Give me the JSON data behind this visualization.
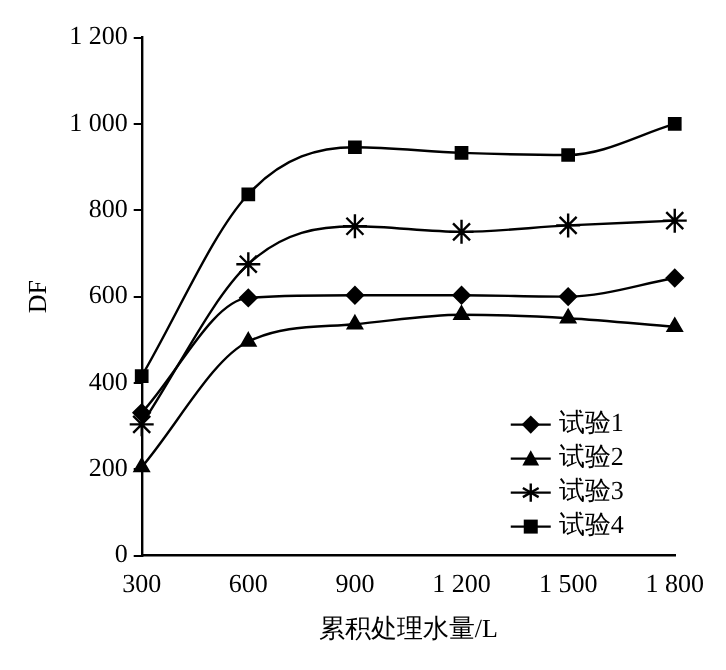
{
  "chart_data": {
    "type": "line",
    "xlabel": "累积处理水量/L",
    "ylabel": "DF",
    "x": [
      300,
      600,
      900,
      1200,
      1500,
      1800
    ],
    "xlim": [
      300,
      1800
    ],
    "xticks": [
      300,
      600,
      900,
      {
        "value": 1200,
        "label": "1 200"
      },
      {
        "value": 1500,
        "label": "1 500"
      },
      {
        "value": 1800,
        "label": "1 800"
      }
    ],
    "ylim": [
      0,
      1200
    ],
    "yticks": [
      0,
      200,
      400,
      600,
      800,
      {
        "value": 1000,
        "label": "1 000"
      },
      {
        "value": 1200,
        "label": "1 200"
      }
    ],
    "grid": false,
    "legend": "bottom right",
    "line_style": "solid",
    "series": [
      {
        "name": "试验1",
        "color": "#000000",
        "marker": "diamond",
        "values": [
          331,
          597,
          603,
          603,
          600,
          643
        ]
      },
      {
        "name": "试验2",
        "color": "#000000",
        "marker": "triangle",
        "values": [
          205,
          496,
          536,
          558,
          550,
          530
        ]
      },
      {
        "name": "试验3",
        "color": "#000000",
        "marker": "cross",
        "values": [
          304,
          675,
          763,
          750,
          765,
          776
        ]
      },
      {
        "name": "试验4",
        "color": "#000000",
        "marker": "square",
        "values": [
          416,
          837,
          946,
          933,
          928,
          1000
        ]
      }
    ]
  }
}
